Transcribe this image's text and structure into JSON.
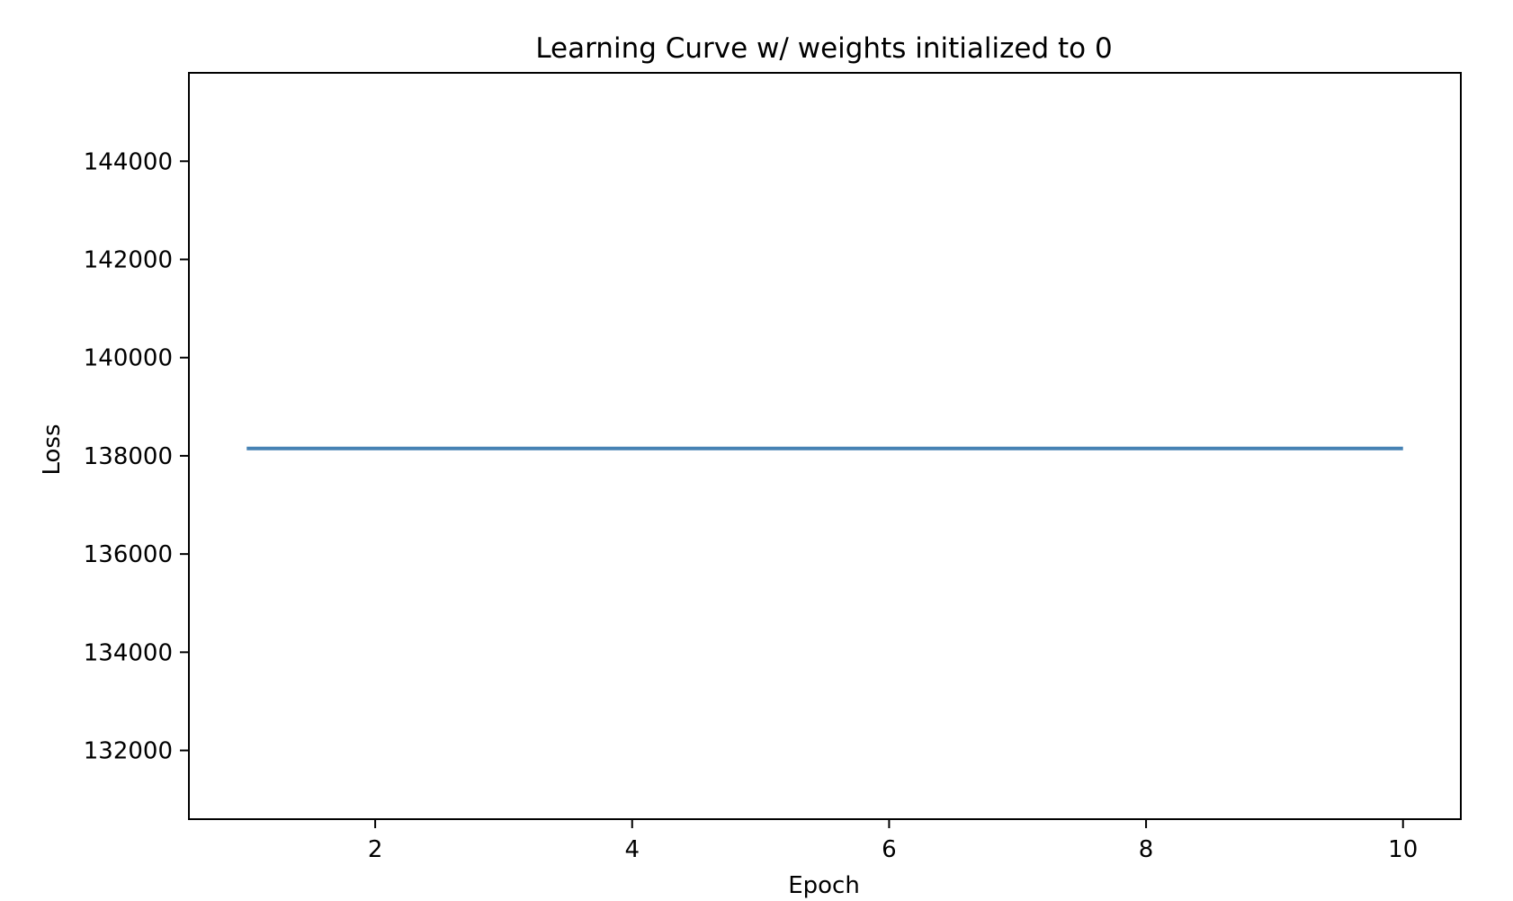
{
  "chart_data": {
    "type": "line",
    "title": "Learning Curve w/ weights initialized to 0",
    "xlabel": "Epoch",
    "ylabel": "Loss",
    "x": [
      1,
      2,
      3,
      4,
      5,
      6,
      7,
      8,
      9,
      10
    ],
    "series": [
      {
        "values": [
          138150,
          138150,
          138150,
          138150,
          138150,
          138150,
          138150,
          138150,
          138150,
          138150
        ],
        "color": "#4682b4"
      }
    ],
    "xlim": [
      0.55,
      10.45
    ],
    "ylim": [
      130600,
      145800
    ],
    "xticks": [
      2,
      4,
      6,
      8,
      10
    ],
    "xtick_labels": [
      "2",
      "4",
      "6",
      "8",
      "10"
    ],
    "yticks": [
      132000,
      134000,
      136000,
      138000,
      140000,
      142000,
      144000
    ],
    "ytick_labels": [
      "132000",
      "134000",
      "136000",
      "138000",
      "140000",
      "142000",
      "144000"
    ],
    "grid": false,
    "legend": "none"
  }
}
